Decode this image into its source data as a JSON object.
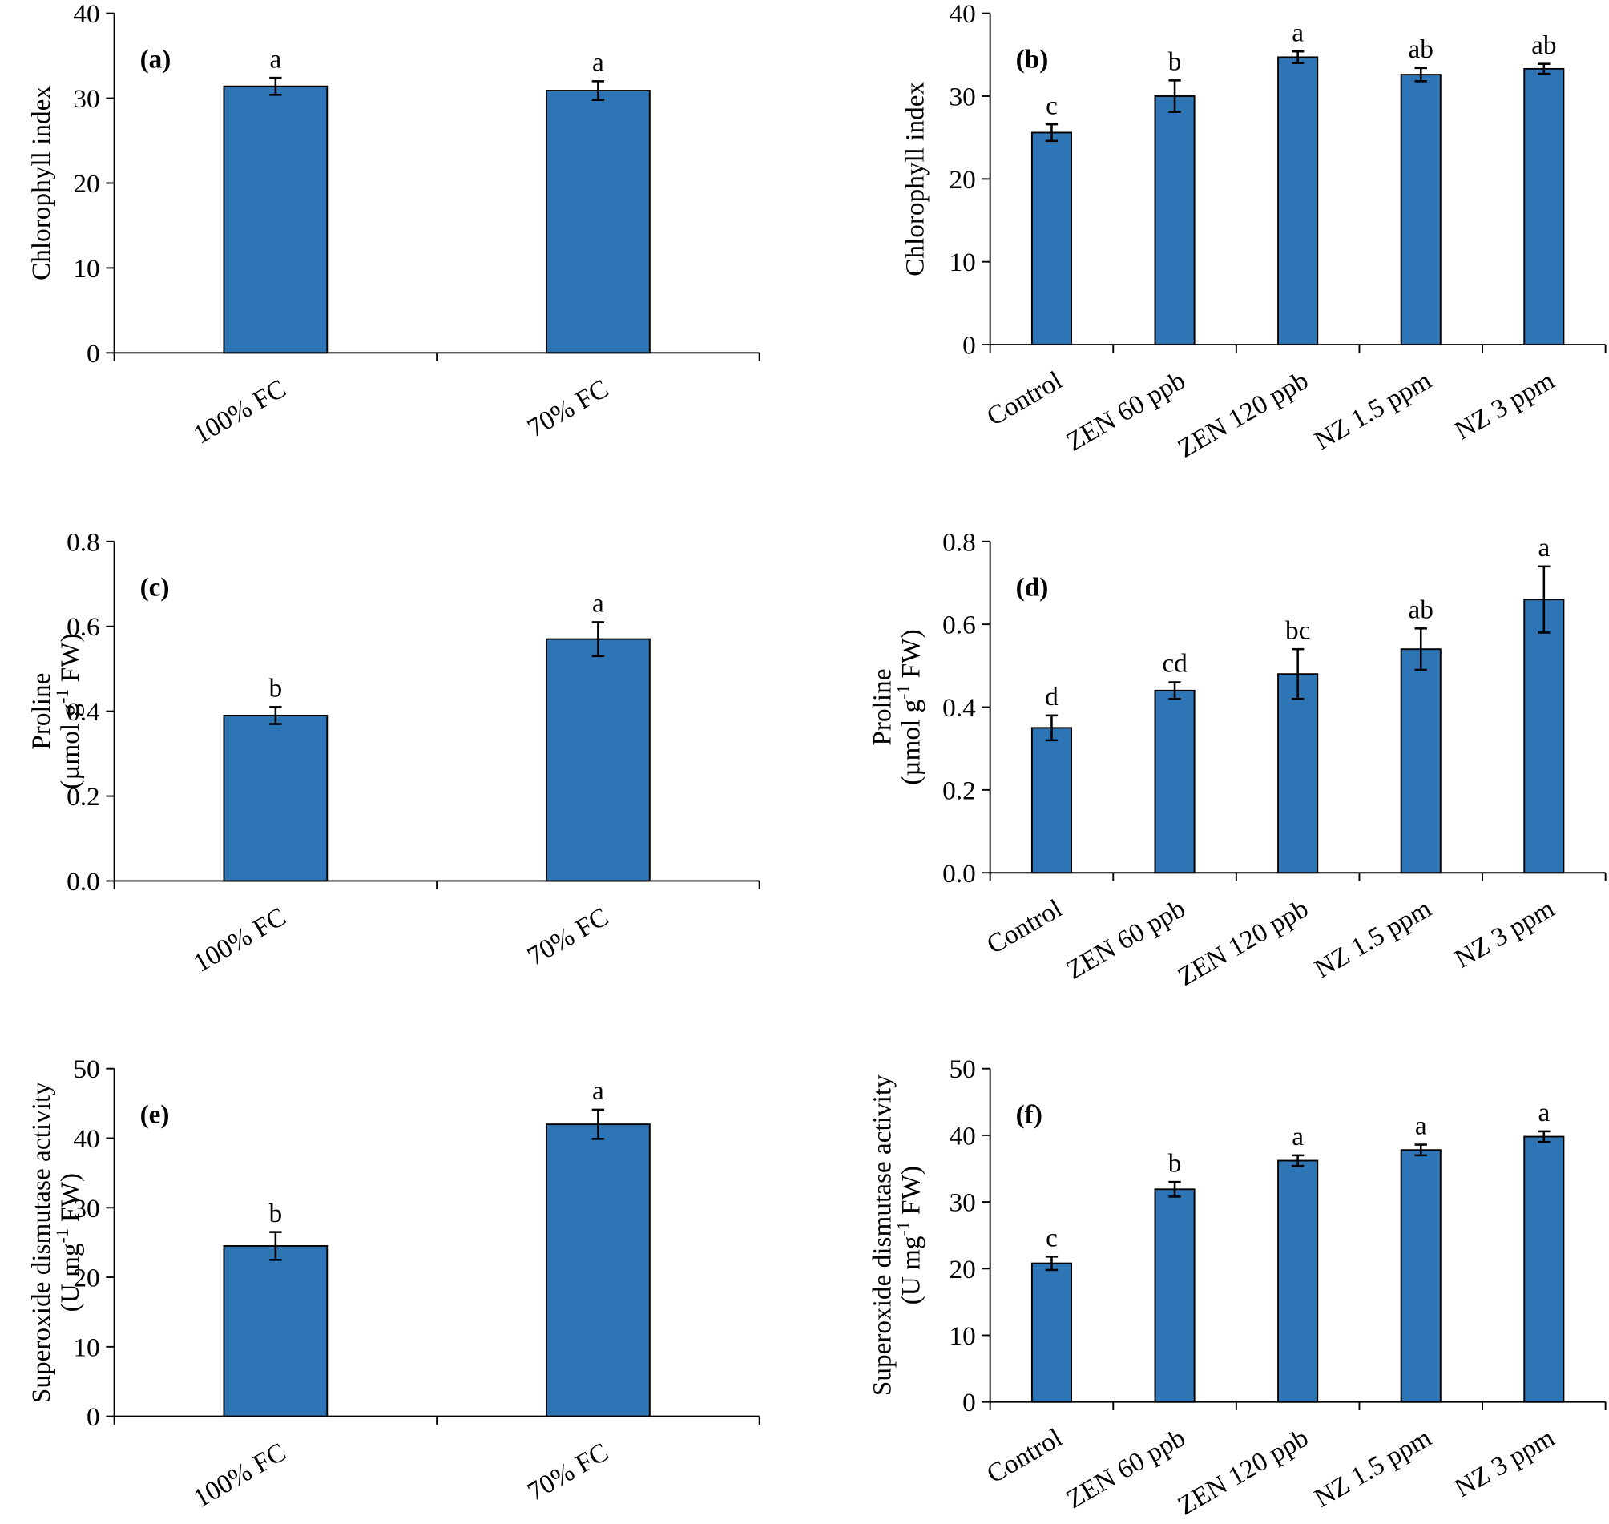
{
  "chart_data": [
    {
      "type": "bar",
      "panel": "(a)",
      "ylabel": [
        "Chlorophyll index"
      ],
      "categories": [
        "100% FC",
        "70% FC"
      ],
      "values": [
        31.4,
        30.9
      ],
      "errors": [
        1.0,
        1.1
      ],
      "letters": [
        "a",
        "a"
      ],
      "color": "#2e75b6",
      "ylim": [
        0,
        40
      ],
      "yticks": [
        0,
        10,
        20,
        30,
        40
      ]
    },
    {
      "type": "bar",
      "panel": "(b)",
      "ylabel": [
        "Chlorophyll index"
      ],
      "categories": [
        "Control",
        "ZEN 60 ppb",
        "ZEN 120 ppb",
        "NZ 1.5 ppm",
        "NZ 3 ppm"
      ],
      "values": [
        25.6,
        30.0,
        34.7,
        32.6,
        33.3
      ],
      "errors": [
        1.0,
        1.9,
        0.7,
        0.8,
        0.6
      ],
      "letters": [
        "c",
        "b",
        "a",
        "ab",
        "ab"
      ],
      "color": "#2e75b6",
      "ylim": [
        0,
        40
      ],
      "yticks": [
        0,
        10,
        20,
        30,
        40
      ]
    },
    {
      "type": "bar",
      "panel": "(c)",
      "ylabel": [
        "Proline",
        [
          "(µmol g",
          "-1",
          " FW)"
        ]
      ],
      "categories": [
        "100% FC",
        "70% FC"
      ],
      "values": [
        0.39,
        0.57
      ],
      "errors": [
        0.02,
        0.04
      ],
      "letters": [
        "b",
        "a"
      ],
      "color": "#2e75b6",
      "ylim": [
        0,
        0.8
      ],
      "yticks": [
        {
          "value": 0,
          "label": "0.0"
        },
        0.2,
        0.4,
        0.6,
        0.8
      ]
    },
    {
      "type": "bar",
      "panel": "(d)",
      "ylabel": [
        "Proline",
        [
          "(µmol g",
          "-1",
          " FW)"
        ]
      ],
      "categories": [
        "Control",
        "ZEN 60 ppb",
        "ZEN 120 ppb",
        "NZ 1.5 ppm",
        "NZ 3 ppm"
      ],
      "values": [
        0.35,
        0.44,
        0.48,
        0.54,
        0.66
      ],
      "errors": [
        0.03,
        0.02,
        0.06,
        0.05,
        0.08
      ],
      "letters": [
        "d",
        "cd",
        "bc",
        "ab",
        "a"
      ],
      "color": "#2e75b6",
      "ylim": [
        0,
        0.8
      ],
      "yticks": [
        {
          "value": 0,
          "label": "0.0"
        },
        0.2,
        0.4,
        0.6,
        0.8
      ]
    },
    {
      "type": "bar",
      "panel": "(e)",
      "ylabel": [
        "Superoxide dismutase activity",
        [
          "(U mg",
          "-1",
          " FW)"
        ]
      ],
      "categories": [
        "100% FC",
        "70% FC"
      ],
      "values": [
        24.5,
        42.0
      ],
      "errors": [
        2.0,
        2.1
      ],
      "letters": [
        "b",
        "a"
      ],
      "color": "#2e75b6",
      "ylim": [
        0,
        50
      ],
      "yticks": [
        0,
        10,
        20,
        30,
        40,
        50
      ]
    },
    {
      "type": "bar",
      "panel": "(f)",
      "ylabel": [
        "Superoxide dismutase activity",
        [
          "(U mg",
          "-1",
          " FW)"
        ]
      ],
      "categories": [
        "Control",
        "ZEN 60 ppb",
        "ZEN 120 ppb",
        "NZ 1.5 ppm",
        "NZ 3 ppm"
      ],
      "values": [
        20.8,
        31.9,
        36.2,
        37.8,
        39.8
      ],
      "errors": [
        1.0,
        1.1,
        0.8,
        0.8,
        0.8
      ],
      "letters": [
        "c",
        "b",
        "a",
        "a",
        "a"
      ],
      "color": "#2e75b6",
      "ylim": [
        0,
        50
      ],
      "yticks": [
        0,
        10,
        20,
        30,
        40,
        50
      ]
    }
  ]
}
